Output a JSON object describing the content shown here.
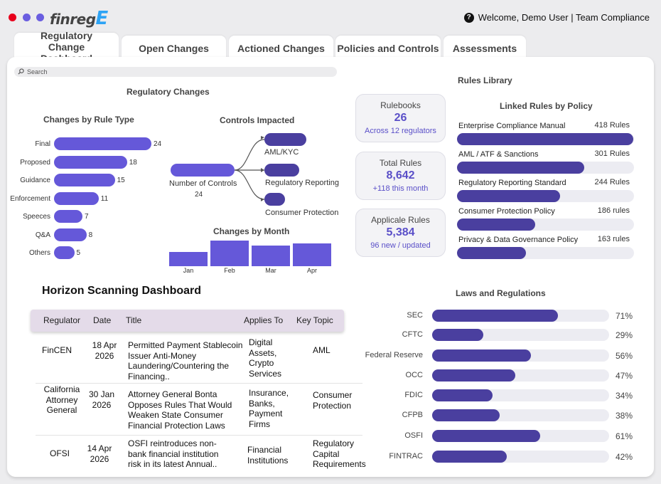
{
  "header": {
    "logo_text": "finreg",
    "logo_accent": "E",
    "welcome": "Welcome, Demo User | Team Compliance",
    "window_dots": [
      "#e8001c",
      "#6a5ee0",
      "#6a5ee0"
    ]
  },
  "tabs": [
    {
      "label": "Regulatory Change Dashboard",
      "active": true
    },
    {
      "label": "Open Changes"
    },
    {
      "label": "Actioned Changes"
    },
    {
      "label": "Policies and Controls"
    },
    {
      "label": "Assessments"
    }
  ],
  "search": {
    "placeholder": "Search"
  },
  "regulatory_changes": {
    "title": "Regulatory Changes",
    "by_rule_type": {
      "title": "Changes by Rule Type",
      "categories": [
        "Final",
        "Proposed",
        "Guidance",
        "Enforcement",
        "Speeces",
        "Q&A",
        "Others"
      ],
      "values": [
        24,
        18,
        15,
        11,
        7,
        8,
        5
      ]
    },
    "controls_impacted": {
      "title": "Controls Impacted",
      "source_label": "Number of Controls",
      "source_value": "24",
      "targets": [
        "AML/KYC",
        "Regulatory Reporting",
        "Consumer Protection"
      ]
    },
    "by_month": {
      "title": "Changes by Month",
      "categories": [
        "Jan",
        "Feb",
        "Mar",
        "Apr"
      ],
      "values": [
        19,
        35,
        28,
        31
      ]
    }
  },
  "kpis": [
    {
      "title": "Rulebooks",
      "value": "26",
      "sub": "Across 12 regulators"
    },
    {
      "title": "Total Rules",
      "value": "8,642",
      "sub": "+118 this month"
    },
    {
      "title": "Applicale Rules",
      "value": "5,384",
      "sub": "96 new / updated"
    }
  ],
  "rules_library": {
    "title": "Rules Library",
    "subtitle": "Linked Rules by Policy",
    "items": [
      {
        "name": "Enterprise Compliance Manual",
        "count": "418 Rules",
        "value": 418
      },
      {
        "name": "AML / ATF & Sanctions",
        "count": "301 Rules",
        "value": 301
      },
      {
        "name": "Regulatory Reporting Standard",
        "count": "244 Rules",
        "value": 244
      },
      {
        "name": "Consumer Protection Policy",
        "count": "186 rules",
        "value": 186
      },
      {
        "name": "Privacy & Data Governance Policy",
        "count": "163 rules",
        "value": 163
      }
    ]
  },
  "horizon": {
    "title": "Horizon Scanning Dashboard",
    "columns": [
      "Regulator",
      "Date",
      "Title",
      "Applies To",
      "Key Topic"
    ],
    "rows": [
      {
        "regulator": "FinCEN",
        "date": "18 Apr 2026",
        "title": "Permitted Payment Stablecoin Issuer Anti-Money Laundering/Countering the Financing..",
        "applies": "Digital Assets, Crypto Services",
        "topic": "AML"
      },
      {
        "regulator": "California Attorney General",
        "date": "30 Jan 2026",
        "title": "Attorney General Bonta Opposes Rules That Would Weaken State Consumer Financial Protection Laws",
        "applies": "Insurance, Banks, Payment Firms",
        "topic": "Consumer Protection"
      },
      {
        "regulator": "OFSI",
        "date": "14 Apr 2026",
        "title": "OSFI reintroduces non-bank financial institution risk in its latest Annual..",
        "applies": "Financial Institutions",
        "topic": "Regulatory Capital Requirements"
      }
    ]
  },
  "laws": {
    "title": "Laws and Regulations",
    "items": [
      {
        "name": "SEC",
        "pct": 71,
        "label": "71%"
      },
      {
        "name": "CFTC",
        "pct": 29,
        "label": "29%"
      },
      {
        "name": "Federal Reserve",
        "pct": 56,
        "label": "56%"
      },
      {
        "name": "OCC",
        "pct": 47,
        "label": "47%"
      },
      {
        "name": "FDIC",
        "pct": 34,
        "label": "34%"
      },
      {
        "name": "CFPB",
        "pct": 38,
        "label": "38%"
      },
      {
        "name": "OSFI",
        "pct": 61,
        "label": "61%"
      },
      {
        "name": "FINTRAC",
        "pct": 42,
        "label": "42%"
      }
    ]
  },
  "colors": {
    "accent": "#6558d9",
    "dark_accent": "#4a3f9f",
    "logo_e": "#2da3f5"
  }
}
